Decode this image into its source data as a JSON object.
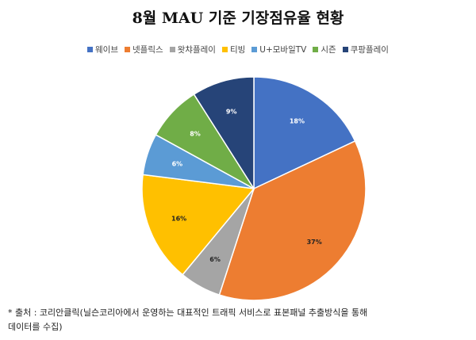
{
  "chart_data": {
    "type": "pie",
    "title": "8월 MAU 기준 기장점유율 현황",
    "categories": [
      "웨이브",
      "넷플릭스",
      "왓챠플레이",
      "티빙",
      "U+모바일TV",
      "시즌",
      "쿠팡플레이"
    ],
    "values": [
      18,
      37,
      6,
      16,
      6,
      8,
      9
    ],
    "value_labels": [
      "18%",
      "37%",
      "6%",
      "16%",
      "6%",
      "8%",
      "9%"
    ],
    "colors": [
      "#4472c4",
      "#ed7d31",
      "#a5a5a5",
      "#ffc000",
      "#5b9bd5",
      "#70ad47",
      "#264478"
    ],
    "legend_position": "top"
  },
  "footnote": {
    "line1": "* 출처 : 코리안클릭(닐슨코리아에서 운영하는 대표적인 트래픽 서비스로 표본패널 추출방식을 통해",
    "line2": "데이터를 수집)"
  }
}
